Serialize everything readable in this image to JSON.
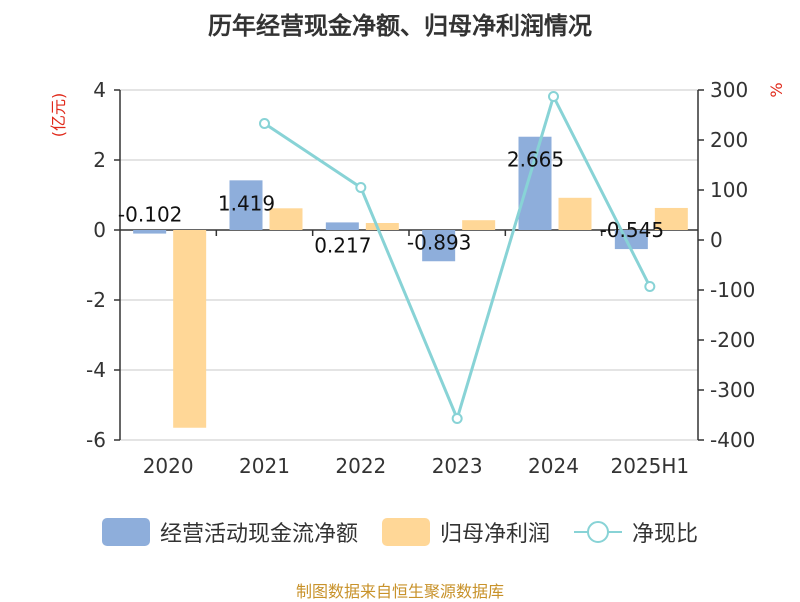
{
  "title": "历年经营现金净额、归母净利润情况",
  "source": "制图数据来自恒生聚源数据库",
  "colors": {
    "cash_flow": "#8EAEDB",
    "net_profit": "#FFD797",
    "ratio": "#88D3D6",
    "unit_red": "#E0291A"
  },
  "chart_data": {
    "type": "bar",
    "title": "历年经营现金净额、归母净利润情况",
    "categories": [
      "2020",
      "2021",
      "2022",
      "2023",
      "2024",
      "2025H1"
    ],
    "left_axis": {
      "label": "(亿元)",
      "ylim": [
        -6,
        4
      ],
      "ticks": [
        4,
        2,
        0,
        -2,
        -4,
        -6
      ]
    },
    "right_axis": {
      "label": "%",
      "ylim": [
        -400,
        300
      ],
      "ticks": [
        300,
        200,
        100,
        0,
        -100,
        -200,
        -300,
        -400
      ]
    },
    "grid": true,
    "legend_position": "bottom",
    "series": [
      {
        "name": "经营活动现金流净额",
        "type": "bar",
        "axis": "left",
        "values": [
          -0.102,
          1.419,
          0.217,
          -0.893,
          2.665,
          -0.545
        ],
        "labels": [
          "-0.102",
          "1.419",
          "0.217",
          "-0.893",
          "2.665",
          "-0.545"
        ]
      },
      {
        "name": "归母净利润",
        "type": "bar",
        "axis": "left",
        "values": [
          -5.65,
          0.62,
          0.2,
          0.28,
          0.92,
          0.63
        ]
      },
      {
        "name": "净现比",
        "type": "line",
        "axis": "right",
        "values": [
          null,
          233,
          105,
          -357,
          287,
          -93
        ]
      }
    ]
  }
}
